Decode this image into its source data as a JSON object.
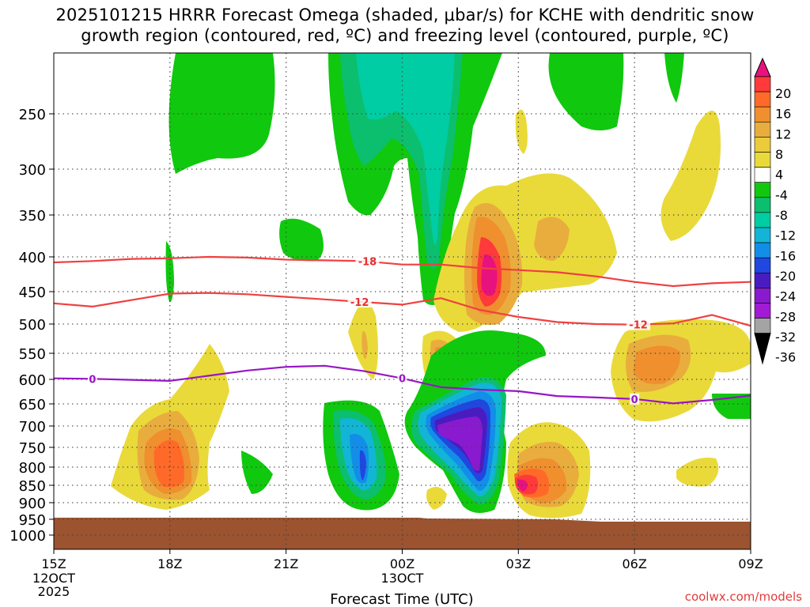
{
  "chart_data": {
    "type": "time-height cross section (filled contour)",
    "title_line1": "2025101215 HRRR Forecast Omega (shaded, μbar/s) for KCHE with dendritic snow",
    "title_line2": "growth region (contoured, red, ºC) and freezing level (contoured, purple, ºC)",
    "xlabel": "Forecast Time (UTC)",
    "ylabel": "",
    "x_range_hours": [
      0,
      18
    ],
    "x_ticks": [
      {
        "h": 0,
        "label": "15Z",
        "sub1": "12OCT",
        "sub2": "2025"
      },
      {
        "h": 3,
        "label": "18Z"
      },
      {
        "h": 6,
        "label": "21Z"
      },
      {
        "h": 9,
        "label": "00Z",
        "sub1": "13OCT"
      },
      {
        "h": 12,
        "label": "03Z"
      },
      {
        "h": 15,
        "label": "06Z"
      },
      {
        "h": 18,
        "label": "09Z"
      }
    ],
    "y_ticks": [
      "250",
      "300",
      "350",
      "400",
      "450",
      "500",
      "550",
      "600",
      "650",
      "700",
      "750",
      "800",
      "850",
      "900",
      "950",
      "1000"
    ],
    "colorbar": {
      "labels": [
        "20",
        "16",
        "12",
        "8",
        "4",
        "-4",
        "-8",
        "-12",
        "-16",
        "-20",
        "-24",
        "-28",
        "-32",
        "-36"
      ],
      "colors": [
        "#e8127e",
        "#ff3a3a",
        "#ff6a28",
        "#ef8f2e",
        "#e9ad3d",
        "#ebcb3b",
        "#e9da3a",
        "#ffffff",
        "#10c80e",
        "#0bbf6e",
        "#00cda3",
        "#12b5d6",
        "#138ee8",
        "#2047e0",
        "#4a1cc0",
        "#8a1ad0",
        "#a11bd4",
        "#a4a4a4",
        "#000000"
      ]
    },
    "ground_color": "#9b5330",
    "omega_regions": [
      {
        "desc": "sinking green column aloft",
        "hour_span": [
          3.0,
          5.6
        ],
        "p_range": [
          220,
          315
        ],
        "value": -6
      },
      {
        "desc": "strong sinking column",
        "hour_span": [
          7.6,
          10.7
        ],
        "p_range": [
          220,
          480
        ],
        "value": -10
      },
      {
        "desc": "core of sinking column",
        "hour_span": [
          8.5,
          9.6
        ],
        "p_range": [
          230,
          330
        ],
        "value": -14
      },
      {
        "desc": "rising max aloft",
        "hour_span": [
          10.7,
          12.5
        ],
        "p_range": [
          330,
          520
        ],
        "value": 20
      },
      {
        "desc": "sinking max low levels",
        "hour_span": [
          9.0,
          12.4
        ],
        "p_range": [
          550,
          920
        ],
        "value": -32
      },
      {
        "desc": "sinking min near 23Z",
        "hour_span": [
          7.9,
          10.5
        ],
        "p_range": [
          640,
          920
        ],
        "value": -18
      },
      {
        "desc": "rising max 03Z-04Z",
        "hour_span": [
          12.4,
          14.4
        ],
        "p_range": [
          690,
          940
        ],
        "value": 20
      },
      {
        "desc": "rising 18Z low levels",
        "hour_span": [
          1.6,
          4.5
        ],
        "p_range": [
          600,
          920
        ],
        "value": 16
      },
      {
        "desc": "rising 06Z-07Z mid levels",
        "hour_span": [
          14.6,
          17.6
        ],
        "p_range": [
          470,
          660
        ],
        "value": 16
      }
    ],
    "contours": [
      {
        "value": "-18",
        "color": "#f04040",
        "points": [
          [
            0,
            408
          ],
          [
            1,
            406
          ],
          [
            2,
            403
          ],
          [
            3,
            402
          ],
          [
            4,
            400
          ],
          [
            5,
            401
          ],
          [
            6,
            404
          ],
          [
            7,
            405
          ],
          [
            8,
            406
          ],
          [
            9,
            411
          ],
          [
            10,
            411
          ],
          [
            11,
            416
          ],
          [
            12,
            419
          ],
          [
            13,
            422
          ],
          [
            14,
            428
          ],
          [
            15,
            436
          ],
          [
            16,
            442
          ],
          [
            17,
            438
          ],
          [
            18,
            436
          ]
        ]
      },
      {
        "value": "-12",
        "color": "#f04040",
        "points": [
          [
            0,
            468
          ],
          [
            1,
            473
          ],
          [
            2,
            463
          ],
          [
            3,
            453
          ],
          [
            4,
            452
          ],
          [
            5,
            454
          ],
          [
            6,
            458
          ],
          [
            7,
            462
          ],
          [
            8,
            466
          ],
          [
            9,
            470
          ],
          [
            10,
            460
          ],
          [
            11,
            478
          ],
          [
            12,
            489
          ],
          [
            13,
            497
          ],
          [
            14,
            500
          ],
          [
            15,
            501
          ],
          [
            16,
            499
          ],
          [
            17,
            486
          ],
          [
            18,
            503
          ]
        ]
      },
      {
        "value": "0",
        "color": "#9716c6",
        "points": [
          [
            0,
            598
          ],
          [
            1,
            599
          ],
          [
            2,
            601
          ],
          [
            3,
            603
          ],
          [
            4,
            593
          ],
          [
            5,
            583
          ],
          [
            6,
            576
          ],
          [
            7,
            574
          ],
          [
            8,
            584
          ],
          [
            9,
            598
          ],
          [
            10,
            616
          ],
          [
            11,
            621
          ],
          [
            12,
            624
          ],
          [
            13,
            634
          ],
          [
            14,
            637
          ],
          [
            15,
            640
          ],
          [
            16,
            649
          ],
          [
            17,
            642
          ],
          [
            18,
            633
          ]
        ]
      }
    ],
    "contour_labels": [
      {
        "text": "-18",
        "h": 8.1,
        "p": 406
      },
      {
        "text": "-12",
        "h": 7.9,
        "p": 466
      },
      {
        "text": "-12",
        "h": 15.1,
        "p": 501
      },
      {
        "text": "0",
        "h": 1.0,
        "p": 599
      },
      {
        "text": "0",
        "h": 9.0,
        "p": 598
      },
      {
        "text": "0",
        "h": 15.0,
        "p": 640
      }
    ]
  },
  "credit": "coolwx.com/models"
}
